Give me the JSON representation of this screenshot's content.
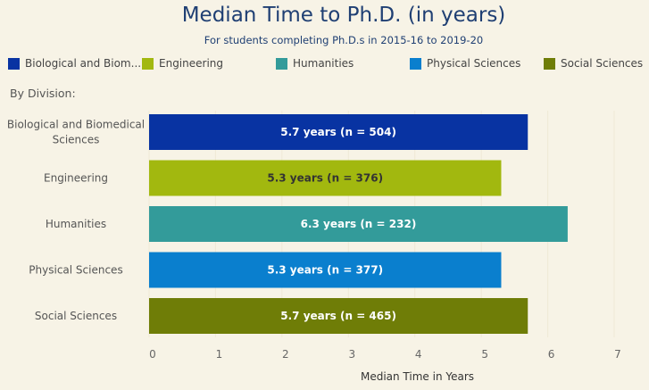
{
  "title": "Median Time to Ph.D. (in years)",
  "subtitle": "For students completing Ph.D.s in 2015-16 to 2019-20",
  "legend": [
    {
      "label": "Biological and Biom...",
      "color": "#0833a2"
    },
    {
      "label": "Engineering",
      "color": "#a2b80f"
    },
    {
      "label": "Humanities",
      "color": "#339b9a"
    },
    {
      "label": "Physical Sciences",
      "color": "#0a7fce"
    },
    {
      "label": "Social Sciences",
      "color": "#6f7d07"
    }
  ],
  "section_label": "By Division:",
  "chart_data": {
    "type": "bar",
    "orientation": "horizontal",
    "categories": [
      [
        "Biological and Biomedical",
        "Sciences"
      ],
      [
        "Engineering"
      ],
      [
        "Humanities"
      ],
      [
        "Physical Sciences"
      ],
      [
        "Social Sciences"
      ]
    ],
    "values": [
      5.7,
      5.3,
      6.3,
      5.3,
      5.7
    ],
    "bar_labels": [
      "5.7 years (n = 504)",
      "5.3 years (n = 376)",
      "6.3 years (n = 232)",
      "5.3 years (n = 377)",
      "5.7 years (n = 465)"
    ],
    "label_colors": [
      "#ffffff",
      "#333333",
      "#ffffff",
      "#ffffff",
      "#ffffff"
    ],
    "colors": [
      "#0833a2",
      "#a2b80f",
      "#339b9a",
      "#0a7fce",
      "#6f7d07"
    ],
    "xlim": [
      0,
      7
    ],
    "xticks": [
      0,
      1,
      2,
      3,
      4,
      5,
      6,
      7
    ],
    "xlabel": "Median Time in Years",
    "title": "Median Time to Ph.D. (in years)"
  }
}
